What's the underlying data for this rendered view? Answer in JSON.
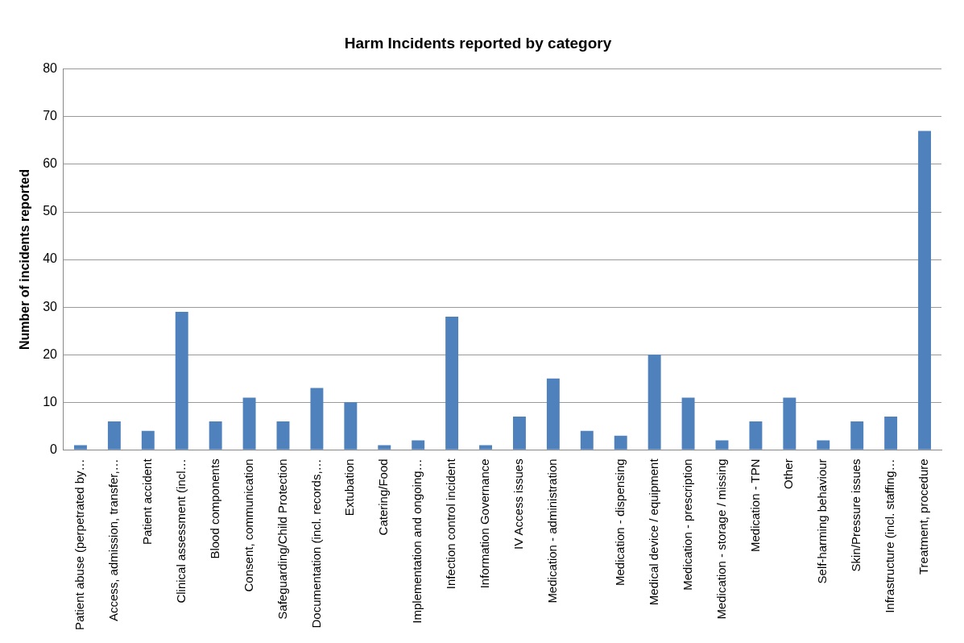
{
  "chart_data": {
    "type": "bar",
    "title": "Harm Incidents reported by category",
    "ylabel": "Number of incidents reported",
    "categories": [
      "Patient abuse (perpetrated by…",
      "Access, admission, transfer,…",
      "Patient accident",
      "Clinical assessment (incl…",
      "Blood components",
      "Consent, communication",
      "Safeguarding/Child Protection",
      "Documentation (incl. records,…",
      "Extubation",
      "Catering/Food",
      "Implementation and ongoing…",
      "Infection control incident",
      "Information Governance",
      "IV Access issues",
      "Medication - administration",
      null,
      "Medication - dispensing",
      "Medical device / equipment",
      "Medication - prescription",
      "Medication - storage / missing",
      "Medication - TPN",
      "Other",
      "Self-harming behaviour",
      "Skin/Pressure issues",
      "Infrastructure (incl. staffing…",
      "Treatment, procedure"
    ],
    "values": [
      1,
      6,
      4,
      29,
      6,
      11,
      6,
      13,
      10,
      1,
      2,
      28,
      1,
      7,
      15,
      4,
      3,
      20,
      11,
      2,
      6,
      11,
      2,
      6,
      7,
      67
    ],
    "color": "#4f81bd",
    "ylim": [
      0,
      80
    ],
    "yticks": [
      0,
      10,
      20,
      30,
      40,
      50,
      60,
      70,
      80
    ],
    "grid": "y",
    "legend": false
  }
}
